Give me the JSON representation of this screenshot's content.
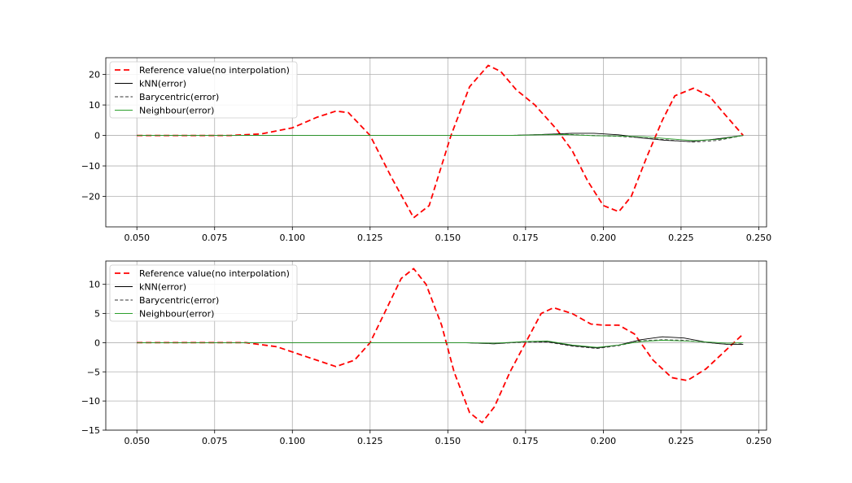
{
  "chart_data": [
    {
      "type": "line",
      "xlim": [
        0.04,
        0.2525
      ],
      "ylim": [
        -30,
        25.5
      ],
      "grid": true,
      "legend_placement": "top-left",
      "x_ticks": [
        0.05,
        0.075,
        0.1,
        0.125,
        0.15,
        0.175,
        0.2,
        0.225,
        0.25
      ],
      "x_tick_labels": [
        "0.050",
        "0.075",
        "0.100",
        "0.125",
        "0.150",
        "0.175",
        "0.200",
        "0.225",
        "0.250"
      ],
      "y_ticks": [
        -20,
        -10,
        0,
        10,
        20
      ],
      "y_tick_labels": [
        "−20",
        "−10",
        "0",
        "10",
        "20"
      ],
      "series": [
        {
          "name": "Reference value(no interpolation)",
          "color": "#ff0000",
          "style": "dashed",
          "width": 1.8,
          "x": [
            0.05,
            0.08,
            0.09,
            0.1,
            0.108,
            0.114,
            0.118,
            0.125,
            0.132,
            0.139,
            0.144,
            0.151,
            0.157,
            0.163,
            0.167,
            0.172,
            0.178,
            0.185,
            0.19,
            0.195,
            0.2,
            0.205,
            0.209,
            0.214,
            0.219,
            0.223,
            0.229,
            0.234,
            0.239,
            0.245
          ],
          "y": [
            0,
            0,
            0.5,
            2.5,
            6,
            8,
            7.5,
            0,
            -14,
            -27,
            -23,
            0,
            16,
            23,
            21,
            15,
            10,
            2,
            -5,
            -15,
            -23,
            -25,
            -20,
            -7,
            5,
            13,
            15.5,
            13,
            7,
            0
          ]
        },
        {
          "name": "kNN(error)",
          "color": "#000000",
          "style": "solid",
          "width": 0.9,
          "x": [
            0.05,
            0.17,
            0.18,
            0.19,
            0.197,
            0.205,
            0.212,
            0.22,
            0.228,
            0.236,
            0.245
          ],
          "y": [
            0,
            0,
            0.3,
            0.7,
            0.7,
            0.2,
            -0.8,
            -1.6,
            -2.0,
            -1.2,
            0
          ]
        },
        {
          "name": "Barycentric(error)",
          "color": "#333333",
          "style": "dashed",
          "width": 0.9,
          "x": [
            0.05,
            0.17,
            0.18,
            0.188,
            0.196,
            0.205,
            0.213,
            0.22,
            0.229,
            0.237,
            0.245
          ],
          "y": [
            0,
            0,
            0.3,
            0.4,
            0,
            -0.3,
            -0.8,
            -1.4,
            -2.2,
            -1.6,
            0
          ]
        },
        {
          "name": "Neighbour(error)",
          "color": "#2ca02c",
          "style": "solid",
          "width": 0.9,
          "x": [
            0.05,
            0.17,
            0.18,
            0.188,
            0.197,
            0.205,
            0.213,
            0.22,
            0.229,
            0.237,
            0.245
          ],
          "y": [
            0,
            0,
            0.2,
            0.3,
            -0.1,
            -0.2,
            -0.4,
            -1.0,
            -1.7,
            -1.3,
            0
          ]
        }
      ]
    },
    {
      "type": "line",
      "xlim": [
        0.04,
        0.2525
      ],
      "ylim": [
        -15,
        14
      ],
      "grid": true,
      "legend_placement": "top-left",
      "x_ticks": [
        0.05,
        0.075,
        0.1,
        0.125,
        0.15,
        0.175,
        0.2,
        0.225,
        0.25
      ],
      "x_tick_labels": [
        "0.050",
        "0.075",
        "0.100",
        "0.125",
        "0.150",
        "0.175",
        "0.200",
        "0.225",
        "0.250"
      ],
      "y_ticks": [
        -15,
        -10,
        -5,
        0,
        5,
        10
      ],
      "y_tick_labels": [
        "−15",
        "−10",
        "−5",
        "0",
        "5",
        "10"
      ],
      "series": [
        {
          "name": "Reference value(no interpolation)",
          "color": "#ff0000",
          "style": "dashed",
          "width": 1.8,
          "x": [
            0.05,
            0.085,
            0.095,
            0.105,
            0.114,
            0.12,
            0.125,
            0.13,
            0.135,
            0.139,
            0.143,
            0.148,
            0.152,
            0.157,
            0.161,
            0.165,
            0.17,
            0.175,
            0.18,
            0.184,
            0.19,
            0.196,
            0.2,
            0.205,
            0.21,
            0.216,
            0.222,
            0.227,
            0.233,
            0.238,
            0.245
          ],
          "y": [
            0,
            0,
            -0.7,
            -2.5,
            -4.1,
            -3,
            0,
            5.5,
            11,
            12.7,
            10,
            3,
            -5,
            -12,
            -13.7,
            -11,
            -5,
            0,
            5,
            6,
            5,
            3.2,
            3,
            3,
            1.5,
            -3,
            -6,
            -6.5,
            -4.5,
            -2,
            1.5
          ]
        },
        {
          "name": "kNN(error)",
          "color": "#000000",
          "style": "solid",
          "width": 0.9,
          "x": [
            0.05,
            0.155,
            0.165,
            0.175,
            0.182,
            0.19,
            0.198,
            0.205,
            0.212,
            0.219,
            0.226,
            0.234,
            0.24,
            0.245
          ],
          "y": [
            0,
            0,
            -0.2,
            0.2,
            0.2,
            -0.5,
            -0.9,
            -0.4,
            0.5,
            1.0,
            0.8,
            0,
            -0.3,
            -0.3
          ]
        },
        {
          "name": "Barycentric(error)",
          "color": "#333333",
          "style": "dashed",
          "width": 0.9,
          "x": [
            0.05,
            0.155,
            0.165,
            0.175,
            0.182,
            0.19,
            0.198,
            0.205,
            0.212,
            0.219,
            0.226,
            0.234,
            0.24,
            0.245
          ],
          "y": [
            0,
            0,
            -0.2,
            0.1,
            0.1,
            -0.6,
            -1.0,
            -0.5,
            0.3,
            0.5,
            0.4,
            0,
            -0.3,
            -0.2
          ]
        },
        {
          "name": "Neighbour(error)",
          "color": "#2ca02c",
          "style": "solid",
          "width": 0.9,
          "x": [
            0.05,
            0.155,
            0.165,
            0.175,
            0.182,
            0.19,
            0.198,
            0.205,
            0.212,
            0.219,
            0.226,
            0.234,
            0.24,
            0.245
          ],
          "y": [
            0,
            0,
            -0.1,
            0.2,
            0.3,
            -0.4,
            -0.8,
            -0.4,
            0.2,
            0.4,
            0.3,
            0.1,
            -0.1,
            0
          ]
        }
      ]
    }
  ]
}
